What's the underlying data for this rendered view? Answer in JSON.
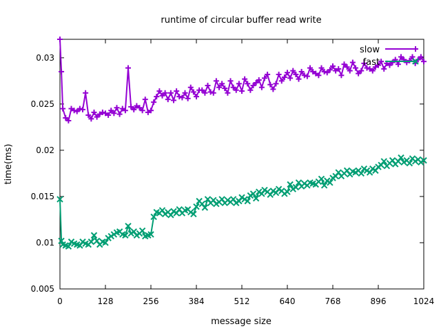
{
  "chart_data": {
    "type": "line",
    "title": "runtime of circular buffer read write",
    "xlabel": "message size",
    "ylabel": "time(ms)",
    "xlim": [
      0,
      1024
    ],
    "ylim": [
      0.005,
      0.032
    ],
    "x_ticks": [
      0,
      128,
      256,
      384,
      512,
      640,
      768,
      896,
      1024
    ],
    "y_ticks": [
      0.005,
      0.01,
      0.015,
      0.02,
      0.025,
      0.03
    ],
    "y_tick_labels": [
      "0.005",
      "0.01",
      "0.015",
      "0.02",
      "0.025",
      "0.03"
    ],
    "grid": false,
    "legend_position": "top-right",
    "series": [
      {
        "name": "slow",
        "color": "#9400d3",
        "marker": "plus",
        "x": [
          0,
          4,
          8,
          16,
          24,
          32,
          40,
          48,
          56,
          64,
          72,
          80,
          88,
          96,
          104,
          112,
          120,
          128,
          136,
          144,
          152,
          160,
          168,
          176,
          184,
          192,
          200,
          208,
          216,
          224,
          232,
          240,
          248,
          256,
          264,
          272,
          280,
          288,
          296,
          304,
          312,
          320,
          328,
          336,
          344,
          352,
          360,
          368,
          376,
          384,
          392,
          400,
          408,
          416,
          424,
          432,
          440,
          448,
          456,
          464,
          472,
          480,
          488,
          496,
          504,
          512,
          520,
          528,
          536,
          544,
          552,
          560,
          568,
          576,
          584,
          592,
          600,
          608,
          616,
          624,
          632,
          640,
          648,
          656,
          664,
          672,
          680,
          688,
          696,
          704,
          712,
          720,
          728,
          736,
          744,
          752,
          760,
          768,
          776,
          784,
          792,
          800,
          808,
          816,
          824,
          832,
          840,
          848,
          856,
          864,
          872,
          880,
          888,
          896,
          904,
          912,
          920,
          928,
          936,
          944,
          952,
          960,
          968,
          976,
          984,
          992,
          1000,
          1008,
          1016,
          1024
        ],
        "values": [
          0.032,
          0.0285,
          0.0245,
          0.0235,
          0.0232,
          0.0245,
          0.0243,
          0.0242,
          0.0245,
          0.0244,
          0.0262,
          0.0238,
          0.0234,
          0.0241,
          0.0236,
          0.0239,
          0.0241,
          0.024,
          0.0238,
          0.0243,
          0.024,
          0.0246,
          0.0239,
          0.0245,
          0.0243,
          0.0289,
          0.0247,
          0.0244,
          0.0248,
          0.0246,
          0.0243,
          0.0255,
          0.0241,
          0.0243,
          0.0252,
          0.0258,
          0.0264,
          0.0259,
          0.0262,
          0.0255,
          0.0262,
          0.0254,
          0.0264,
          0.0258,
          0.0257,
          0.0262,
          0.0256,
          0.0268,
          0.0263,
          0.0258,
          0.0265,
          0.0265,
          0.0262,
          0.027,
          0.0263,
          0.0262,
          0.0275,
          0.0268,
          0.0272,
          0.0267,
          0.0262,
          0.0275,
          0.0268,
          0.0265,
          0.0272,
          0.0264,
          0.0277,
          0.0272,
          0.0265,
          0.027,
          0.0273,
          0.0276,
          0.0268,
          0.0278,
          0.0282,
          0.0271,
          0.0266,
          0.0272,
          0.0282,
          0.0275,
          0.0279,
          0.0284,
          0.0278,
          0.0286,
          0.0282,
          0.0277,
          0.0285,
          0.0281,
          0.028,
          0.0289,
          0.0285,
          0.0283,
          0.0281,
          0.0289,
          0.0285,
          0.0284,
          0.0287,
          0.0291,
          0.0286,
          0.0288,
          0.0281,
          0.0293,
          0.029,
          0.0286,
          0.0295,
          0.0289,
          0.0283,
          0.0286,
          0.0294,
          0.0289,
          0.0288,
          0.0286,
          0.029,
          0.0292,
          0.0296,
          0.0288,
          0.0294,
          0.0292,
          0.0295,
          0.0298,
          0.0293,
          0.0301,
          0.0298,
          0.0295,
          0.0297,
          0.0301,
          0.0294,
          0.0298,
          0.0301,
          0.0296
        ]
      },
      {
        "name": "fast",
        "color": "#009e73",
        "marker": "x",
        "x": [
          0,
          4,
          8,
          16,
          24,
          32,
          40,
          48,
          56,
          64,
          72,
          80,
          88,
          96,
          104,
          112,
          120,
          128,
          136,
          144,
          152,
          160,
          168,
          176,
          184,
          192,
          200,
          208,
          216,
          224,
          232,
          240,
          248,
          256,
          264,
          272,
          280,
          288,
          296,
          304,
          312,
          320,
          328,
          336,
          344,
          352,
          360,
          368,
          376,
          384,
          392,
          400,
          408,
          416,
          424,
          432,
          440,
          448,
          456,
          464,
          472,
          480,
          488,
          496,
          504,
          512,
          520,
          528,
          536,
          544,
          552,
          560,
          568,
          576,
          584,
          592,
          600,
          608,
          616,
          624,
          632,
          640,
          648,
          656,
          664,
          672,
          680,
          688,
          696,
          704,
          712,
          720,
          728,
          736,
          744,
          752,
          760,
          768,
          776,
          784,
          792,
          800,
          808,
          816,
          824,
          832,
          840,
          848,
          856,
          864,
          872,
          880,
          888,
          896,
          904,
          912,
          920,
          928,
          936,
          944,
          952,
          960,
          968,
          976,
          984,
          992,
          1000,
          1008,
          1016,
          1024
        ],
        "values": [
          0.0147,
          0.0102,
          0.0098,
          0.0097,
          0.0096,
          0.0101,
          0.0099,
          0.0098,
          0.0097,
          0.0101,
          0.0099,
          0.0098,
          0.0101,
          0.0108,
          0.0102,
          0.0098,
          0.0101,
          0.01,
          0.0105,
          0.0107,
          0.0109,
          0.0111,
          0.0112,
          0.0109,
          0.0108,
          0.0118,
          0.011,
          0.0112,
          0.0108,
          0.011,
          0.0113,
          0.0107,
          0.0108,
          0.0109,
          0.0128,
          0.0133,
          0.0132,
          0.0135,
          0.0131,
          0.0133,
          0.013,
          0.0134,
          0.0132,
          0.0136,
          0.0132,
          0.0135,
          0.0136,
          0.0133,
          0.0131,
          0.0139,
          0.0145,
          0.0142,
          0.0138,
          0.0147,
          0.0143,
          0.0146,
          0.0142,
          0.0144,
          0.0147,
          0.0143,
          0.0146,
          0.0144,
          0.0147,
          0.0143,
          0.0145,
          0.0149,
          0.0147,
          0.0145,
          0.0151,
          0.0153,
          0.0148,
          0.0155,
          0.0153,
          0.0157,
          0.0155,
          0.0152,
          0.0156,
          0.0154,
          0.0158,
          0.0156,
          0.0153,
          0.0155,
          0.0163,
          0.0158,
          0.016,
          0.0165,
          0.0161,
          0.0164,
          0.0162,
          0.0165,
          0.0164,
          0.0163,
          0.0166,
          0.0169,
          0.0162,
          0.0167,
          0.0165,
          0.017,
          0.0172,
          0.0176,
          0.0172,
          0.0175,
          0.0178,
          0.0174,
          0.0177,
          0.0176,
          0.0178,
          0.0175,
          0.018,
          0.0178,
          0.0176,
          0.018,
          0.0178,
          0.0182,
          0.0184,
          0.0188,
          0.0183,
          0.0186,
          0.0189,
          0.0185,
          0.0188,
          0.0192,
          0.0187,
          0.0189,
          0.0186,
          0.0191,
          0.0188,
          0.019,
          0.0187,
          0.0189
        ]
      }
    ]
  }
}
